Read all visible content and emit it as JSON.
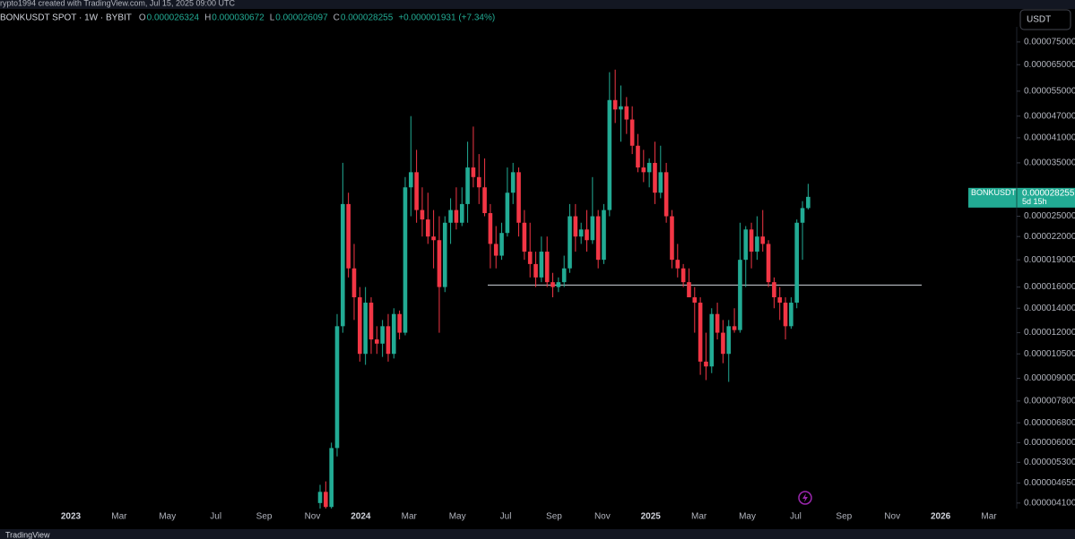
{
  "header": {
    "credit": "rypto1994 created with TradingView.com, Jul 15, 2025 09:00 UTC",
    "symbol": "BONKUSDT SPOT · 1W · BYBIT",
    "ohlc_labels": [
      "O",
      "H",
      "L",
      "C"
    ],
    "change": "+0.000001931 (+7.34%)",
    "currency": "USDT",
    "countdown": "5d 15h",
    "footer": "TradingView"
  },
  "chart_data": {
    "type": "candlestick",
    "name": "BONKUSDT",
    "log_scale": true,
    "up_color": "#22ab94",
    "down_color": "#f23645",
    "ylim": [
      3.96e-06,
      8.25e-05
    ],
    "yticks": [
      {
        "value": 4.1e-06,
        "label": "0.0000041000"
      },
      {
        "value": 4.65e-06,
        "label": "0.0000046500"
      },
      {
        "value": 5.3e-06,
        "label": "0.0000053000"
      },
      {
        "value": 6e-06,
        "label": "0.0000060000"
      },
      {
        "value": 6.8e-06,
        "label": "0.0000068000"
      },
      {
        "value": 7.8e-06,
        "label": "0.0000078000"
      },
      {
        "value": 9e-06,
        "label": "0.0000090000"
      },
      {
        "value": 1.05e-05,
        "label": "0.0000105000"
      },
      {
        "value": 1.2e-05,
        "label": "0.0000120000"
      },
      {
        "value": 1.4e-05,
        "label": "0.0000140000"
      },
      {
        "value": 1.6e-05,
        "label": "0.0000160000"
      },
      {
        "value": 1.9e-05,
        "label": "0.0000190000"
      },
      {
        "value": 2.2e-05,
        "label": "0.0000220000"
      },
      {
        "value": 2.5e-05,
        "label": "0.0000250000"
      },
      {
        "value": 3.5e-05,
        "label": "0.0000350000"
      },
      {
        "value": 4.1e-05,
        "label": "0.0000410000"
      },
      {
        "value": 4.7e-05,
        "label": "0.0000470000"
      },
      {
        "value": 5.5e-05,
        "label": "0.0000550000"
      },
      {
        "value": 6.5e-05,
        "label": "0.0000650000"
      },
      {
        "value": 7.5e-05,
        "label": "0.0000750000"
      }
    ],
    "x_axis_labels": [
      "2023",
      "Mar",
      "May",
      "Jul",
      "Sep",
      "Nov",
      "2024",
      "Mar",
      "May",
      "Jul",
      "Sep",
      "Nov",
      "2025",
      "Mar",
      "May",
      "Jul",
      "Sep",
      "Nov",
      "2026",
      "Mar"
    ],
    "horizontal_line": 1.62e-05,
    "open": [
      4.1e-06,
      4.4e-06,
      4e-06,
      5.8e-06,
      1.25e-05,
      2.7e-05,
      1.8e-05,
      1.5e-05,
      1.05e-05,
      1.45e-05,
      1.15e-05,
      1.12e-05,
      1.25e-05,
      1.05e-05,
      1.35e-05,
      1.2e-05,
      3e-05,
      3.3e-05,
      2.6e-05,
      2.45e-05,
      2.2e-05,
      2.15e-05,
      1.6e-05,
      2.4e-05,
      2.6e-05,
      2.4e-05,
      2.7e-05,
      3.4e-05,
      3.2e-05,
      3e-05,
      2.55e-05,
      2.1e-05,
      1.95e-05,
      2.25e-05,
      2.9e-05,
      3.3e-05,
      2.4e-05,
      2e-05,
      1.85e-05,
      1.7e-05,
      2e-05,
      1.65e-05,
      1.6e-05,
      1.65e-05,
      1.8e-05,
      2.5e-05,
      2.2e-05,
      2.3e-05,
      2.15e-05,
      2.5e-05,
      1.9e-05,
      2.6e-05,
      5.2e-05,
      4.9e-05,
      5e-05,
      4.6e-05,
      3.9e-05,
      3.4e-05,
      3.3e-05,
      3.5e-05,
      2.9e-05,
      3.3e-05,
      2.5e-05,
      1.9e-05,
      1.8e-05,
      1.65e-05,
      1.5e-05,
      1.45e-05,
      1e-05,
      9.7e-06,
      1.35e-05,
      1.2e-05,
      1.05e-05,
      1.25e-05,
      1.22e-05,
      1.9e-05,
      2.3e-05,
      2e-05,
      2.2e-05,
      2.1e-05,
      1.65e-05,
      1.5e-05,
      1.45e-05,
      1.25e-05,
      1.45e-05,
      2.4e-05,
      2.6324e-05
    ],
    "high": [
      4.6e-06,
      4.7e-06,
      6e-06,
      1.35e-05,
      3.5e-05,
      2.9e-05,
      2.1e-05,
      1.6e-05,
      1.6e-05,
      1.5e-05,
      1.25e-05,
      1.3e-05,
      1.35e-05,
      1.4e-05,
      1.38e-05,
      3.2e-05,
      4.7e-05,
      3.8e-05,
      3e-05,
      2.9e-05,
      2.6e-05,
      2.5e-05,
      2.5e-05,
      2.8e-05,
      3e-05,
      3e-05,
      4e-05,
      4.4e-05,
      3.7e-05,
      3.6e-05,
      2.7e-05,
      2.35e-05,
      2.4e-05,
      3.4e-05,
      3.5e-05,
      3.4e-05,
      2.6e-05,
      2.4e-05,
      2e-05,
      2.2e-05,
      2.2e-05,
      1.75e-05,
      1.7e-05,
      1.95e-05,
      2.7e-05,
      2.7e-05,
      2.4e-05,
      2.6e-05,
      3.2e-05,
      2.6e-05,
      2.7e-05,
      6.2e-05,
      6.3e-05,
      5.7e-05,
      5.3e-05,
      5e-05,
      4.2e-05,
      3.8e-05,
      3.6e-05,
      4e-05,
      3.9e-05,
      3.5e-05,
      2.6e-05,
      2.1e-05,
      1.85e-05,
      1.8e-05,
      1.6e-05,
      1.5e-05,
      1.2e-05,
      1.4e-05,
      1.45e-05,
      1.3e-05,
      1.3e-05,
      1.4e-05,
      2.4e-05,
      2.35e-05,
      2.4e-05,
      2.5e-05,
      2.6e-05,
      2.15e-05,
      1.7e-05,
      1.6e-05,
      1.5e-05,
      1.5e-05,
      2.45e-05,
      2.75e-05,
      3.0672e-05
    ],
    "low": [
      3.9e-06,
      3.9e-06,
      3.9e-06,
      5.5e-06,
      1.2e-05,
      1.7e-05,
      1.3e-05,
      1e-05,
      9.8e-06,
      1.05e-05,
      1.05e-05,
      1.03e-05,
      1e-05,
      1.02e-05,
      1.15e-05,
      1.18e-05,
      2.5e-05,
      2.4e-05,
      2.2e-05,
      2.1e-05,
      1.8e-05,
      1.2e-05,
      1.55e-05,
      2.1e-05,
      2.3e-05,
      2.35e-05,
      2.4e-05,
      3e-05,
      2.7e-05,
      2.5e-05,
      1.8e-05,
      1.8e-05,
      1.9e-05,
      2.2e-05,
      2.7e-05,
      2.2e-05,
      1.9e-05,
      1.7e-05,
      1.6e-05,
      1.65e-05,
      1.6e-05,
      1.5e-05,
      1.55e-05,
      1.6e-05,
      1.75e-05,
      2e-05,
      2.1e-05,
      2e-05,
      2.1e-05,
      1.8e-05,
      1.85e-05,
      2.5e-05,
      4.5e-05,
      4e-05,
      4.2e-05,
      3.7e-05,
      3.3e-05,
      3.1e-05,
      3e-05,
      2.7e-05,
      2.8e-05,
      2.4e-05,
      1.8e-05,
      1.7e-05,
      1.6e-05,
      1.5e-05,
      1.2e-05,
      9.2e-06,
      8.9e-06,
      9.3e-06,
      1.15e-05,
      9.9e-06,
      8.8e-06,
      1.2e-05,
      1.2e-05,
      1.6e-05,
      1.8e-05,
      1.9e-05,
      2e-05,
      1.6e-05,
      1.4e-05,
      1.3e-05,
      1.15e-05,
      1.23e-05,
      1.4e-05,
      1.9e-05,
      2.6097e-05
    ],
    "close": [
      4.4e-06,
      4e-06,
      5.8e-06,
      1.25e-05,
      2.7e-05,
      1.8e-05,
      1.5e-05,
      1.05e-05,
      1.45e-05,
      1.15e-05,
      1.12e-05,
      1.25e-05,
      1.05e-05,
      1.35e-05,
      1.2e-05,
      3e-05,
      3.3e-05,
      2.6e-05,
      2.45e-05,
      2.2e-05,
      2.15e-05,
      1.6e-05,
      2.4e-05,
      2.6e-05,
      2.4e-05,
      2.7e-05,
      3.4e-05,
      3.2e-05,
      3e-05,
      2.55e-05,
      2.1e-05,
      1.95e-05,
      2.25e-05,
      2.9e-05,
      3.3e-05,
      2.4e-05,
      2e-05,
      1.85e-05,
      1.7e-05,
      2e-05,
      1.65e-05,
      1.6e-05,
      1.65e-05,
      1.8e-05,
      2.5e-05,
      2.2e-05,
      2.3e-05,
      2.15e-05,
      2.5e-05,
      1.9e-05,
      2.6e-05,
      5.2e-05,
      4.9e-05,
      5e-05,
      4.6e-05,
      3.9e-05,
      3.4e-05,
      3.3e-05,
      3.5e-05,
      2.9e-05,
      3.3e-05,
      2.5e-05,
      1.9e-05,
      1.8e-05,
      1.65e-05,
      1.5e-05,
      1.45e-05,
      1e-05,
      9.7e-06,
      1.35e-05,
      1.2e-05,
      1.05e-05,
      1.25e-05,
      1.22e-05,
      1.9e-05,
      2.3e-05,
      2e-05,
      2.2e-05,
      2.1e-05,
      1.65e-05,
      1.5e-05,
      1.45e-05,
      1.25e-05,
      1.45e-05,
      2.4e-05,
      2.6324e-05,
      2.8255e-05
    ]
  }
}
